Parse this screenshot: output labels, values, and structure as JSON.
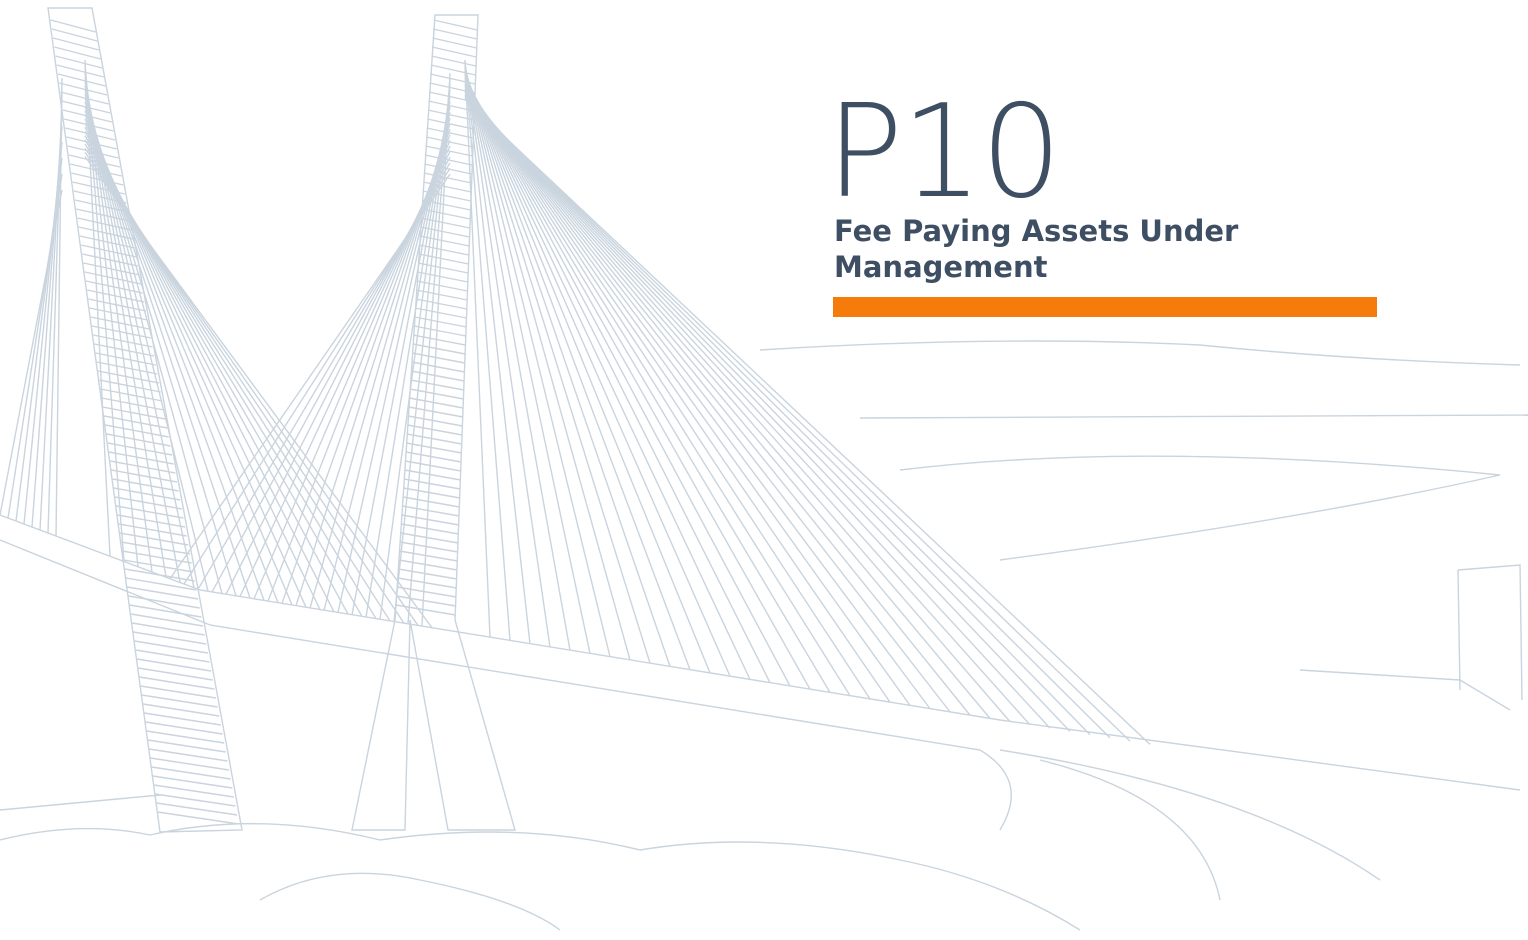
{
  "title": "P10",
  "subtitle_lines": [
    "Fee Paying Assets Under",
    "Management"
  ]
}
